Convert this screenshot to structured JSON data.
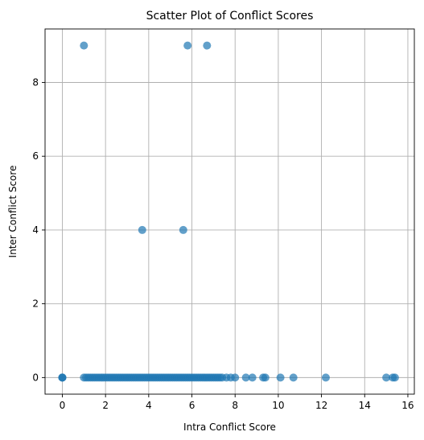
{
  "chart_data": {
    "type": "scatter",
    "title": "Scatter Plot of Conflict Scores",
    "xlabel": "Intra Conflict Score",
    "ylabel": "Inter Conflict Score",
    "xlim": [
      -0.8,
      16.3
    ],
    "ylim": [
      -0.45,
      9.45
    ],
    "xticks": [
      0,
      2,
      4,
      6,
      8,
      10,
      12,
      14,
      16
    ],
    "yticks": [
      0,
      2,
      4,
      6,
      8
    ],
    "grid": true,
    "point_color": "#1f77b4",
    "point_opacity": 0.7,
    "points": [
      {
        "x": 1.0,
        "y": 9
      },
      {
        "x": 5.8,
        "y": 9
      },
      {
        "x": 6.7,
        "y": 9
      },
      {
        "x": 3.7,
        "y": 4
      },
      {
        "x": 5.6,
        "y": 4
      },
      {
        "x": 0.0,
        "y": 0
      },
      {
        "x": 0.0,
        "y": 0
      },
      {
        "x": 0.0,
        "y": 0
      },
      {
        "x": 1.0,
        "y": 0
      },
      {
        "x": 1.1,
        "y": 0
      },
      {
        "x": 1.2,
        "y": 0
      },
      {
        "x": 1.3,
        "y": 0
      },
      {
        "x": 1.4,
        "y": 0
      },
      {
        "x": 1.5,
        "y": 0
      },
      {
        "x": 1.6,
        "y": 0
      },
      {
        "x": 1.7,
        "y": 0
      },
      {
        "x": 1.8,
        "y": 0
      },
      {
        "x": 1.9,
        "y": 0
      },
      {
        "x": 2.0,
        "y": 0
      },
      {
        "x": 2.1,
        "y": 0
      },
      {
        "x": 2.2,
        "y": 0
      },
      {
        "x": 2.3,
        "y": 0
      },
      {
        "x": 2.4,
        "y": 0
      },
      {
        "x": 2.5,
        "y": 0
      },
      {
        "x": 2.6,
        "y": 0
      },
      {
        "x": 2.7,
        "y": 0
      },
      {
        "x": 2.8,
        "y": 0
      },
      {
        "x": 2.9,
        "y": 0
      },
      {
        "x": 3.0,
        "y": 0
      },
      {
        "x": 3.1,
        "y": 0
      },
      {
        "x": 3.2,
        "y": 0
      },
      {
        "x": 3.3,
        "y": 0
      },
      {
        "x": 3.4,
        "y": 0
      },
      {
        "x": 3.5,
        "y": 0
      },
      {
        "x": 3.6,
        "y": 0
      },
      {
        "x": 3.7,
        "y": 0
      },
      {
        "x": 3.8,
        "y": 0
      },
      {
        "x": 3.9,
        "y": 0
      },
      {
        "x": 4.0,
        "y": 0
      },
      {
        "x": 4.1,
        "y": 0
      },
      {
        "x": 4.2,
        "y": 0
      },
      {
        "x": 4.3,
        "y": 0
      },
      {
        "x": 4.4,
        "y": 0
      },
      {
        "x": 4.5,
        "y": 0
      },
      {
        "x": 4.6,
        "y": 0
      },
      {
        "x": 4.7,
        "y": 0
      },
      {
        "x": 4.8,
        "y": 0
      },
      {
        "x": 4.9,
        "y": 0
      },
      {
        "x": 5.0,
        "y": 0
      },
      {
        "x": 5.1,
        "y": 0
      },
      {
        "x": 5.2,
        "y": 0
      },
      {
        "x": 5.3,
        "y": 0
      },
      {
        "x": 5.4,
        "y": 0
      },
      {
        "x": 5.5,
        "y": 0
      },
      {
        "x": 5.6,
        "y": 0
      },
      {
        "x": 5.7,
        "y": 0
      },
      {
        "x": 5.8,
        "y": 0
      },
      {
        "x": 5.9,
        "y": 0
      },
      {
        "x": 6.0,
        "y": 0
      },
      {
        "x": 6.1,
        "y": 0
      },
      {
        "x": 6.2,
        "y": 0
      },
      {
        "x": 6.3,
        "y": 0
      },
      {
        "x": 6.4,
        "y": 0
      },
      {
        "x": 6.5,
        "y": 0
      },
      {
        "x": 6.6,
        "y": 0
      },
      {
        "x": 6.7,
        "y": 0
      },
      {
        "x": 6.8,
        "y": 0
      },
      {
        "x": 6.9,
        "y": 0
      },
      {
        "x": 7.0,
        "y": 0
      },
      {
        "x": 7.1,
        "y": 0
      },
      {
        "x": 7.2,
        "y": 0
      },
      {
        "x": 7.3,
        "y": 0
      },
      {
        "x": 7.4,
        "y": 0
      },
      {
        "x": 7.6,
        "y": 0
      },
      {
        "x": 7.8,
        "y": 0
      },
      {
        "x": 8.0,
        "y": 0
      },
      {
        "x": 8.5,
        "y": 0
      },
      {
        "x": 8.8,
        "y": 0
      },
      {
        "x": 9.3,
        "y": 0
      },
      {
        "x": 9.4,
        "y": 0
      },
      {
        "x": 10.1,
        "y": 0
      },
      {
        "x": 10.7,
        "y": 0
      },
      {
        "x": 12.2,
        "y": 0
      },
      {
        "x": 15.0,
        "y": 0
      },
      {
        "x": 15.3,
        "y": 0
      },
      {
        "x": 15.4,
        "y": 0
      }
    ]
  }
}
